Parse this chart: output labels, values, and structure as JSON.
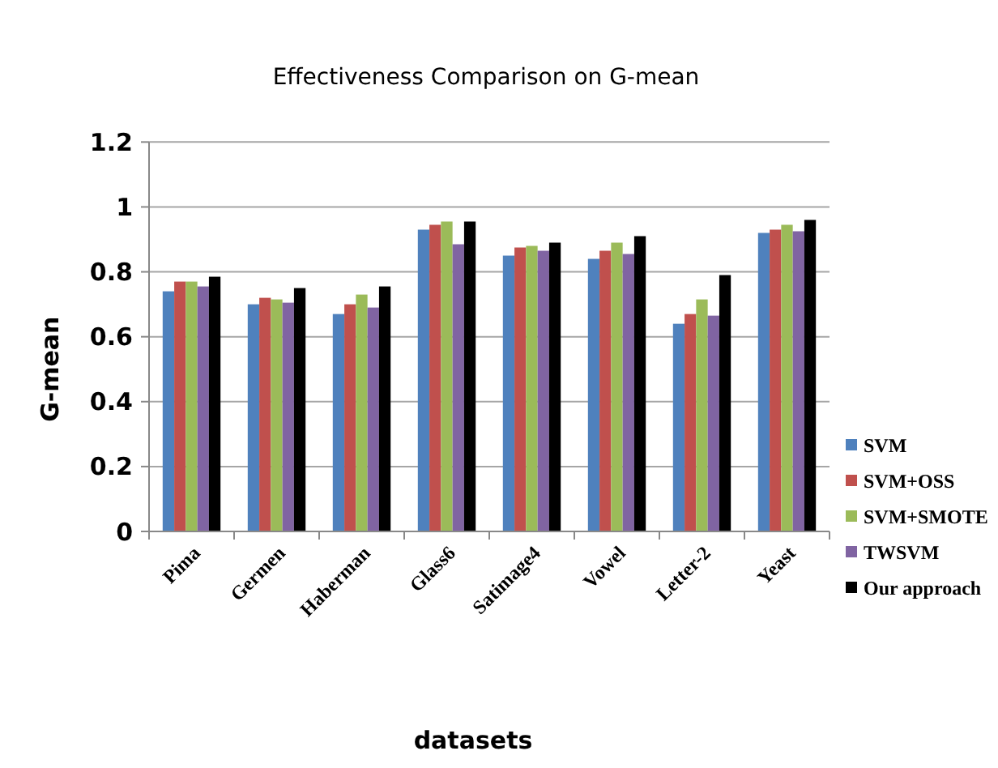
{
  "chart_data": {
    "type": "bar",
    "title": "Effectiveness Comparison on G-mean",
    "xlabel": "datasets",
    "ylabel": "G-mean",
    "categories": [
      "Pima",
      "Germen",
      "Haberman",
      "Glass6",
      "Satimage4",
      "Vowel",
      "Letter-2",
      "Yeast"
    ],
    "series": [
      {
        "name": "SVM",
        "color": "#4f81bd",
        "values": [
          0.74,
          0.7,
          0.67,
          0.93,
          0.85,
          0.84,
          0.64,
          0.92
        ]
      },
      {
        "name": "SVM+OSS",
        "color": "#c0504d",
        "values": [
          0.77,
          0.72,
          0.7,
          0.945,
          0.875,
          0.865,
          0.67,
          0.93
        ]
      },
      {
        "name": "SVM+SMOTE",
        "color": "#9bbb59",
        "values": [
          0.77,
          0.715,
          0.73,
          0.955,
          0.88,
          0.89,
          0.715,
          0.945
        ]
      },
      {
        "name": "TWSVM",
        "color": "#8064a2",
        "values": [
          0.755,
          0.705,
          0.69,
          0.885,
          0.865,
          0.855,
          0.665,
          0.925
        ]
      },
      {
        "name": "Our approach",
        "color": "#000000",
        "values": [
          0.785,
          0.75,
          0.755,
          0.955,
          0.89,
          0.91,
          0.79,
          0.96
        ]
      }
    ],
    "ylim": [
      0,
      1.2
    ],
    "yticks": [
      0,
      {
        "value": 0.2,
        "label": "0.2"
      },
      {
        "value": 0.4,
        "label": "0.4"
      },
      {
        "value": 0.6,
        "label": "0.6"
      },
      {
        "value": 0.8,
        "label": "0.8"
      },
      1,
      {
        "value": 1.2,
        "label": "1.2"
      }
    ],
    "grid": "y",
    "legend": "right"
  }
}
